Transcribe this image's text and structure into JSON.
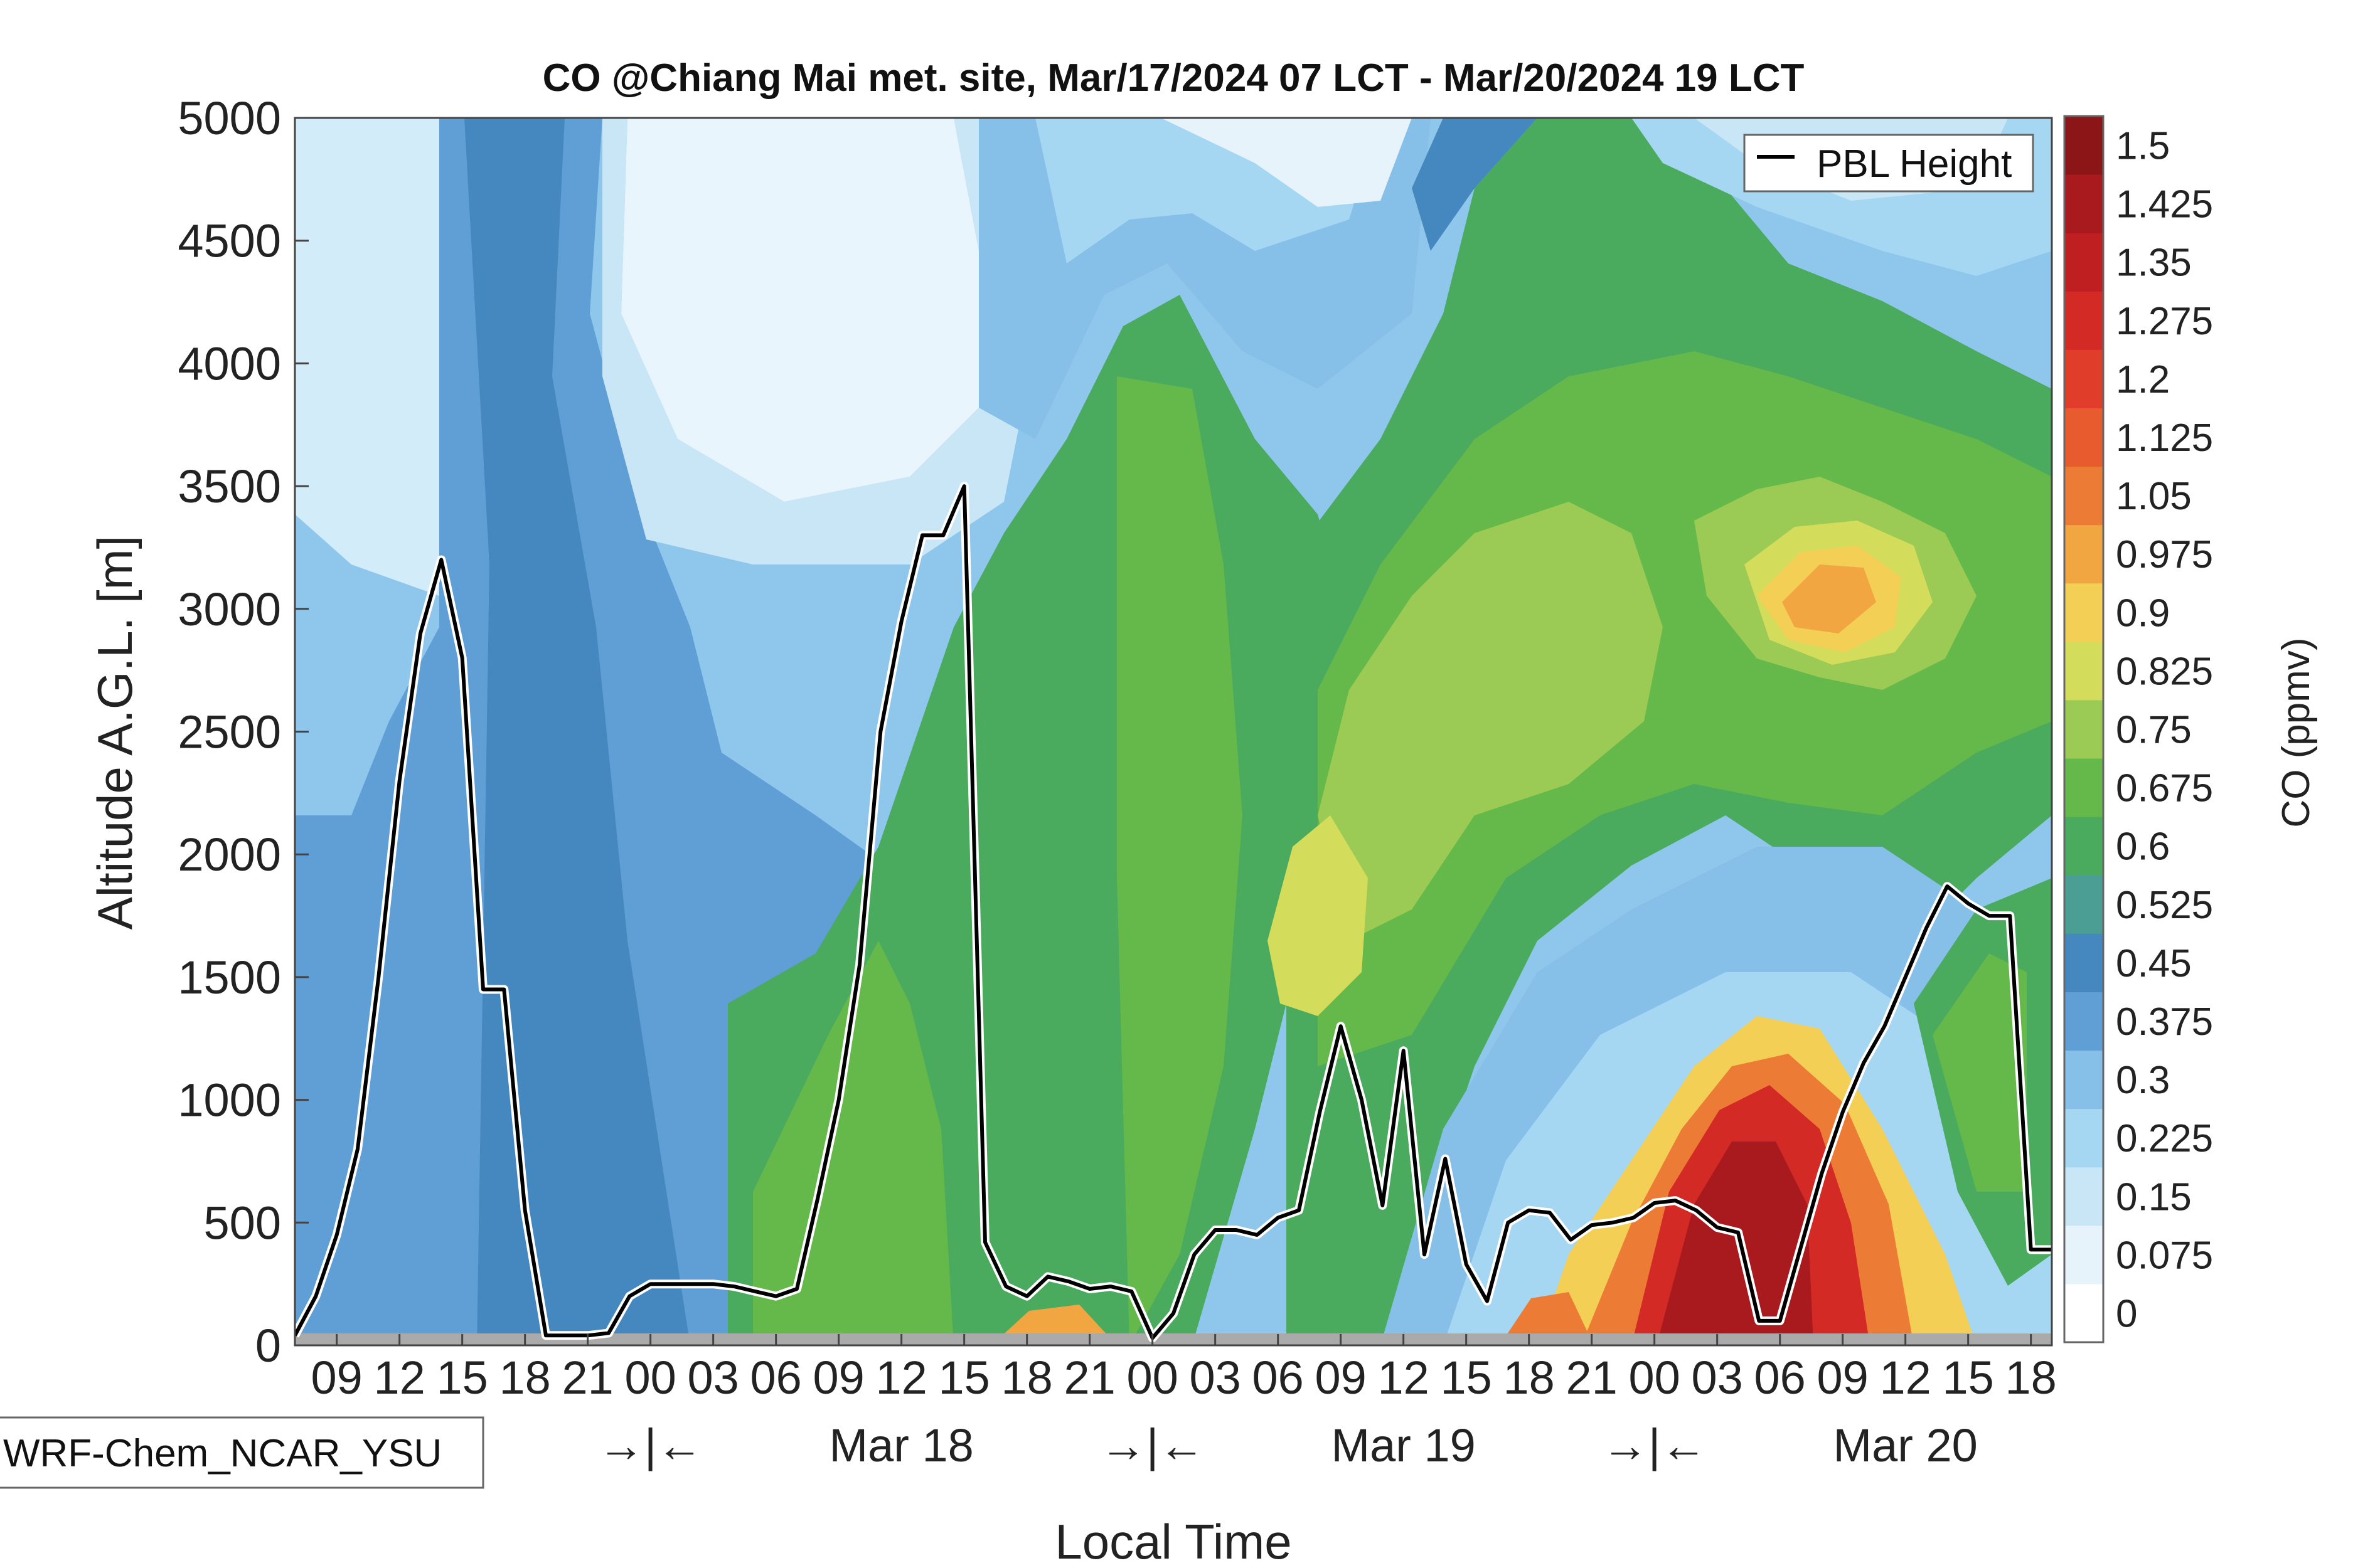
{
  "chart_data": {
    "type": "heatmap",
    "title": "CO @Chiang Mai met. site, Mar/17/2024 07 LCT - Mar/20/2024 19 LCT",
    "xlabel": "Local Time",
    "ylabel": "Altitude A.G.L. [m]",
    "colorbar_label": "CO (ppmv)",
    "model_label": "WRF-Chem_NCAR_YSU",
    "legend": {
      "position": "top-right",
      "entries": [
        "PBL Height"
      ]
    },
    "x_range_hours": [
      0,
      84
    ],
    "ylim": [
      0,
      5000
    ],
    "y_ticks": [
      "0",
      "500",
      "1000",
      "1500",
      "2000",
      "2500",
      "3000",
      "3500",
      "4000",
      "4500",
      "5000"
    ],
    "x_ticks": [
      {
        "hour": 2,
        "label": "09"
      },
      {
        "hour": 5,
        "label": "12"
      },
      {
        "hour": 8,
        "label": "15"
      },
      {
        "hour": 11,
        "label": "18"
      },
      {
        "hour": 14,
        "label": "21"
      },
      {
        "hour": 17,
        "label": "00"
      },
      {
        "hour": 20,
        "label": "03"
      },
      {
        "hour": 23,
        "label": "06"
      },
      {
        "hour": 26,
        "label": "09"
      },
      {
        "hour": 29,
        "label": "12"
      },
      {
        "hour": 32,
        "label": "15"
      },
      {
        "hour": 35,
        "label": "18"
      },
      {
        "hour": 38,
        "label": "21"
      },
      {
        "hour": 41,
        "label": "00"
      },
      {
        "hour": 44,
        "label": "03"
      },
      {
        "hour": 47,
        "label": "06"
      },
      {
        "hour": 50,
        "label": "09"
      },
      {
        "hour": 53,
        "label": "12"
      },
      {
        "hour": 56,
        "label": "15"
      },
      {
        "hour": 59,
        "label": "18"
      },
      {
        "hour": 62,
        "label": "21"
      },
      {
        "hour": 65,
        "label": "00"
      },
      {
        "hour": 68,
        "label": "03"
      },
      {
        "hour": 71,
        "label": "06"
      },
      {
        "hour": 74,
        "label": "09"
      },
      {
        "hour": 77,
        "label": "12"
      },
      {
        "hour": 80,
        "label": "15"
      },
      {
        "hour": 83,
        "label": "18"
      }
    ],
    "day_markers": [
      {
        "hour": 17,
        "label": "→|←"
      },
      {
        "hour": 29,
        "label": "Mar 18"
      },
      {
        "hour": 41,
        "label": "→|←"
      },
      {
        "hour": 53,
        "label": "Mar 19"
      },
      {
        "hour": 65,
        "label": "→|←"
      },
      {
        "hour": 77,
        "label": "Mar 20"
      }
    ],
    "colorbar": {
      "levels": [
        "0",
        "0.075",
        "0.15",
        "0.225",
        "0.3",
        "0.375",
        "0.45",
        "0.525",
        "0.6",
        "0.675",
        "0.75",
        "0.825",
        "0.9",
        "0.975",
        "1.05",
        "1.125",
        "1.2",
        "1.275",
        "1.35",
        "1.425",
        "1.5"
      ],
      "colors": [
        "#ffffff",
        "#e6f3fb",
        "#c9e6f6",
        "#a6d7f2",
        "#86bfe8",
        "#5f9fd6",
        "#4588bf",
        "#4a9e93",
        "#4aab5e",
        "#65b84a",
        "#9ccb55",
        "#d4dc5c",
        "#f4cf55",
        "#f2a641",
        "#ec7b35",
        "#e85b2f",
        "#e03e2a",
        "#d32a26",
        "#c01f22",
        "#a81a1e",
        "#8c1518"
      ]
    },
    "series": [
      {
        "name": "PBL Height",
        "type": "line",
        "x_hours": [
          0,
          1,
          2,
          3,
          4,
          5,
          6,
          7,
          8,
          9,
          10,
          11,
          12,
          13,
          14,
          15,
          16,
          17,
          18,
          19,
          20,
          21,
          22,
          23,
          24,
          25,
          26,
          27,
          28,
          29,
          30,
          31,
          32,
          33,
          34,
          35,
          36,
          37,
          38,
          39,
          40,
          41,
          42,
          43,
          44,
          45,
          46,
          47,
          48,
          49,
          50,
          51,
          52,
          53,
          54,
          55,
          56,
          57,
          58,
          59,
          60,
          61,
          62,
          63,
          64,
          65,
          66,
          67,
          68,
          69,
          70,
          71,
          72,
          73,
          74,
          75,
          76,
          77,
          78,
          79,
          80,
          81,
          82,
          83,
          84
        ],
        "values": [
          40,
          200,
          450,
          800,
          1500,
          2300,
          2900,
          3200,
          2800,
          1450,
          1450,
          550,
          40,
          40,
          40,
          50,
          200,
          250,
          250,
          250,
          250,
          240,
          220,
          200,
          230,
          600,
          1000,
          1550,
          2500,
          2950,
          3300,
          3300,
          3500,
          420,
          240,
          200,
          280,
          260,
          230,
          240,
          220,
          30,
          130,
          370,
          470,
          470,
          450,
          520,
          550,
          950,
          1300,
          1000,
          570,
          1200,
          370,
          760,
          330,
          180,
          500,
          550,
          540,
          430,
          490,
          500,
          520,
          580,
          590,
          550,
          480,
          460,
          100,
          100,
          400,
          700,
          950,
          1150,
          1300,
          1500,
          1700,
          1870,
          1800,
          1750,
          1750,
          390,
          390
        ]
      }
    ]
  }
}
